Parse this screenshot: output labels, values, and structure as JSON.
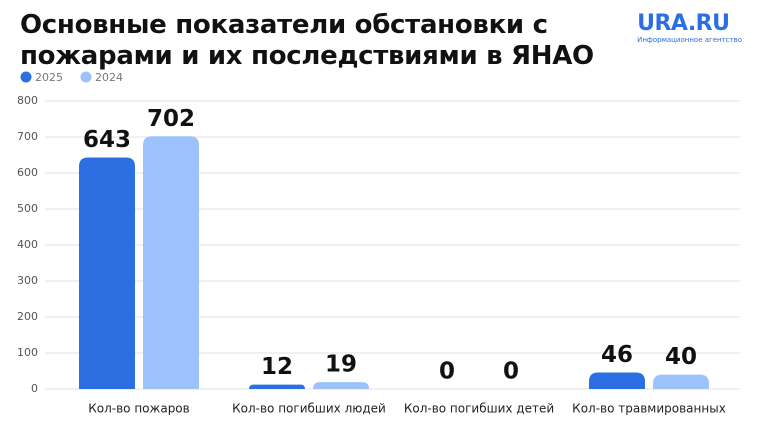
{
  "chart_data": {
    "type": "bar",
    "title": "Основные показатели обстановки с пожарами и их последствиями в ЯНАО",
    "logo": "URA.RU",
    "logo_subtitle": "Информационное агентство",
    "categories": [
      "Кол-во пожаров",
      "Кол-во погибших людей",
      "Кол-во погибших детей",
      "Кол-во травмированных"
    ],
    "series": [
      {
        "name": "2025",
        "color": "#2b6fe3",
        "values": [
          643,
          12,
          0,
          46
        ]
      },
      {
        "name": "2024",
        "color": "#9dc2fb",
        "values": [
          702,
          19,
          0,
          40
        ]
      }
    ],
    "ylim": [
      0,
      800
    ],
    "yticks": [
      0,
      100,
      200,
      300,
      400,
      500,
      600,
      700,
      800
    ],
    "grid": true,
    "legend": "top-left"
  }
}
